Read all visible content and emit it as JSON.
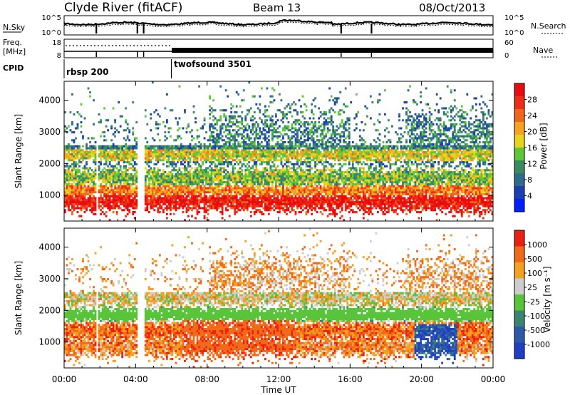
{
  "header": {
    "station": "Clyde River (fitACF)",
    "beam": "Beam 13",
    "date": "08/Oct/2013"
  },
  "chart_data": [
    {
      "type": "line",
      "panel": "noise",
      "left_label": "N.Sky",
      "right_label": "N.Search",
      "left_ticks": [
        "10^5",
        "10^0"
      ],
      "right_ticks": [
        "10^5",
        "10^0"
      ]
    },
    {
      "type": "line",
      "panel": "frequency",
      "left_label_1": "Freq.",
      "left_label_2": "[MHz]",
      "right_label": "Nave",
      "left_ticks": [
        "18",
        "8"
      ],
      "right_ticks": [
        "60",
        "0"
      ],
      "cpid_label": "CPID",
      "cpid_segments": [
        {
          "label": "rbsp 200",
          "start_hour": 0
        },
        {
          "label": "twofsound 3501",
          "start_hour": 6
        }
      ]
    },
    {
      "type": "heatmap",
      "panel": "power",
      "ylabel": "Slant Range [km]",
      "ylim": [
        180,
        4600
      ],
      "yticks": [
        1000,
        2000,
        3000,
        4000
      ],
      "colorbar_label": "Power [dB]",
      "colorbar_ticks": [
        "28",
        "24",
        "20",
        "16",
        "12",
        "8",
        "4"
      ],
      "colors": [
        "#0020ff",
        "#1a3fb0",
        "#2f6c8c",
        "#3a8a62",
        "#5cc838",
        "#e6d51c",
        "#f6a322",
        "#f2661c",
        "#ee2d16",
        "#e80c10"
      ],
      "bands": [
        {
          "center_km": 800,
          "width_km": 300,
          "level": 0.92
        },
        {
          "center_km": 1150,
          "width_km": 250,
          "level": 0.72
        },
        {
          "center_km": 1550,
          "width_km": 350,
          "level": 0.45
        },
        {
          "center_km": 2300,
          "width_km": 300,
          "level": 0.55
        },
        {
          "center_km": 2800,
          "width_km": 900,
          "level": 0.3
        }
      ]
    },
    {
      "type": "heatmap",
      "panel": "velocity",
      "ylabel": "Slant Range [km]",
      "ylim": [
        180,
        4600
      ],
      "yticks": [
        1000,
        2000,
        3000,
        4000
      ],
      "colorbar_label": "Velocity [m s⁻¹]",
      "colorbar_ticks": [
        "1000",
        "500",
        "100",
        "25",
        "-25",
        "-100",
        "-500",
        "-1000"
      ],
      "colors": [
        "#1f3ec4",
        "#2d5aa8",
        "#3a8472",
        "#58c43a",
        "#cdcdcd",
        "#f4a020",
        "#f06a18",
        "#ec2010"
      ],
      "bands": [
        {
          "center_km": 850,
          "width_km": 300,
          "level": 0.75
        },
        {
          "center_km": 1350,
          "width_km": 400,
          "level": 0.8
        },
        {
          "center_km": 1850,
          "width_km": 300,
          "level": 0.5
        },
        {
          "center_km": 2400,
          "width_km": 300,
          "level": 0.6
        },
        {
          "center_km": 3000,
          "width_km": 700,
          "level": 0.7
        }
      ]
    }
  ],
  "xaxis": {
    "label": "Time UT",
    "ticks": [
      "00:00",
      "04:00",
      "08:00",
      "12:00",
      "16:00",
      "20:00",
      "00:00"
    ],
    "range_hours": [
      0,
      24
    ]
  }
}
